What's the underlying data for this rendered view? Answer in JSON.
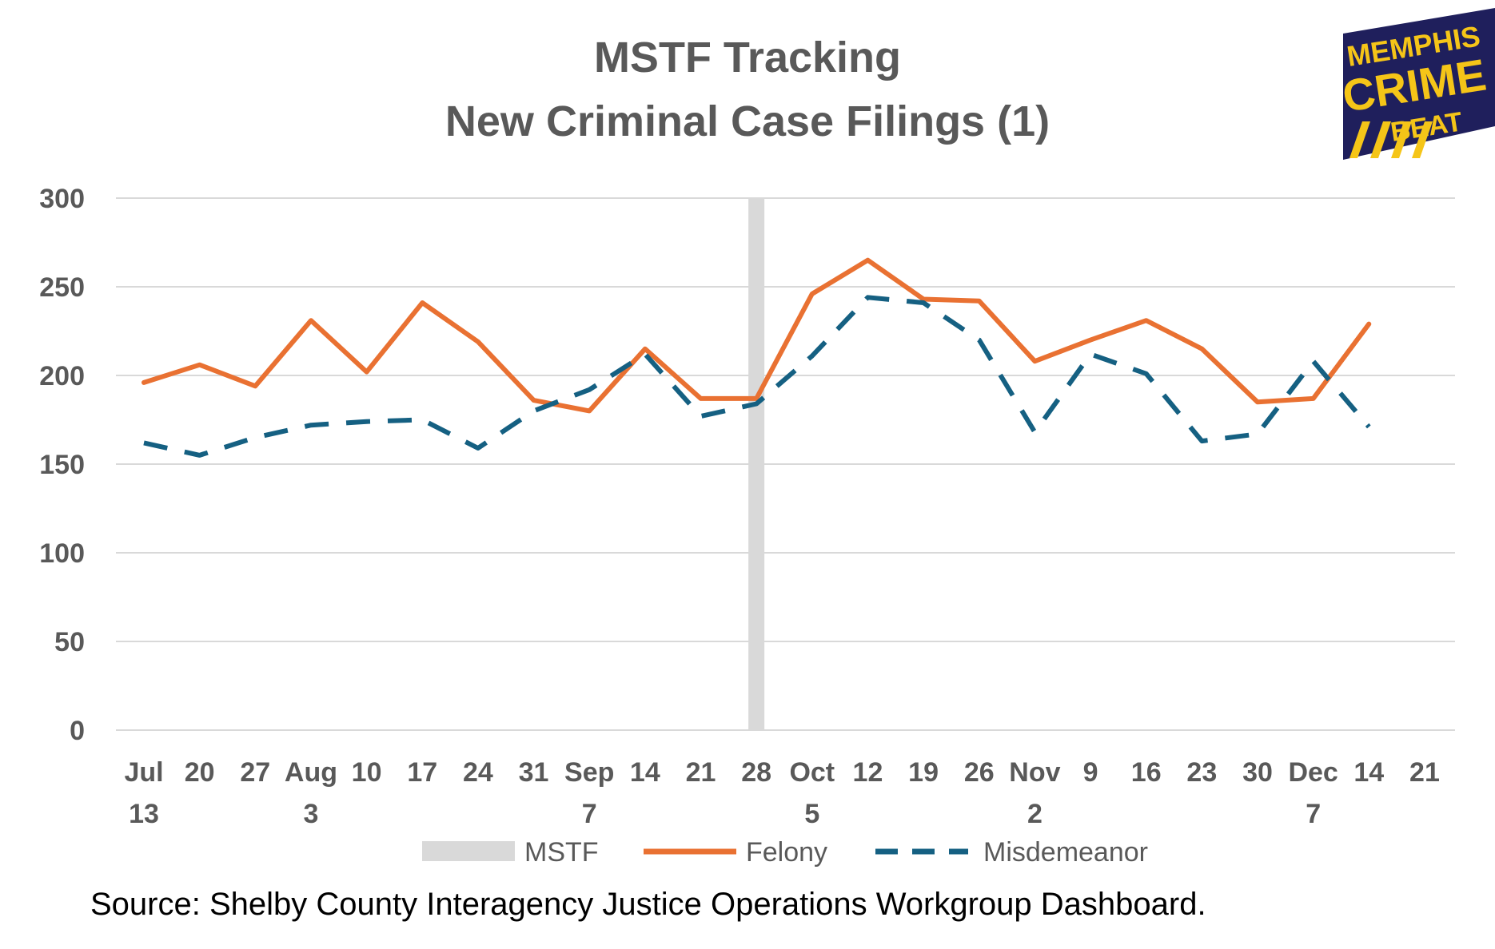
{
  "colors": {
    "felony": "#E97132",
    "misdemeanor": "#156082",
    "mstf": "#D9D9D9",
    "gridline": "#D9D9D9",
    "text": "#595959",
    "logo_bg": "#1F1F5C",
    "logo_fg": "#F5C518"
  },
  "logo": {
    "line1": "MEMPHIS",
    "line2": "CRIME",
    "line3": "BEAT"
  },
  "source_note": "Source:  Shelby County Interagency Justice Operations Workgroup Dashboard.",
  "chart_data": {
    "type": "line",
    "title": "MSTF Tracking",
    "subtitle": "New Criminal Case Filings (1)",
    "ylim": [
      0,
      300
    ],
    "yticks": [
      0,
      50,
      100,
      150,
      200,
      250,
      300
    ],
    "grid": true,
    "legend_position": "bottom",
    "categories": [
      {
        "line1": "Jul",
        "line2": "13"
      },
      {
        "line1": "20",
        "line2": ""
      },
      {
        "line1": "27",
        "line2": ""
      },
      {
        "line1": "Aug",
        "line2": "3"
      },
      {
        "line1": "10",
        "line2": ""
      },
      {
        "line1": "17",
        "line2": ""
      },
      {
        "line1": "24",
        "line2": ""
      },
      {
        "line1": "31",
        "line2": ""
      },
      {
        "line1": "Sep",
        "line2": "7"
      },
      {
        "line1": "14",
        "line2": ""
      },
      {
        "line1": "21",
        "line2": ""
      },
      {
        "line1": "28",
        "line2": ""
      },
      {
        "line1": "Oct",
        "line2": "5"
      },
      {
        "line1": "12",
        "line2": ""
      },
      {
        "line1": "19",
        "line2": ""
      },
      {
        "line1": "26",
        "line2": ""
      },
      {
        "line1": "Nov",
        "line2": "2"
      },
      {
        "line1": "9",
        "line2": ""
      },
      {
        "line1": "16",
        "line2": ""
      },
      {
        "line1": "23",
        "line2": ""
      },
      {
        "line1": "30",
        "line2": ""
      },
      {
        "line1": "Dec",
        "line2": "7"
      },
      {
        "line1": "14",
        "line2": ""
      },
      {
        "line1": "21",
        "line2": ""
      }
    ],
    "mstf_marker": {
      "name": "MSTF",
      "at_category_index": 11,
      "value": 300
    },
    "series": [
      {
        "name": "Felony",
        "style": "solid",
        "values": [
          196,
          206,
          194,
          231,
          202,
          241,
          219,
          186,
          180,
          215,
          187,
          187,
          246,
          265,
          243,
          242,
          208,
          220,
          231,
          215,
          185,
          187,
          229,
          null
        ]
      },
      {
        "name": "Misdemeanor",
        "style": "dashed",
        "values": [
          162,
          155,
          165,
          172,
          174,
          175,
          159,
          180,
          192,
          212,
          177,
          184,
          211,
          244,
          241,
          220,
          168,
          212,
          201,
          163,
          167,
          208,
          171,
          null
        ]
      }
    ]
  }
}
